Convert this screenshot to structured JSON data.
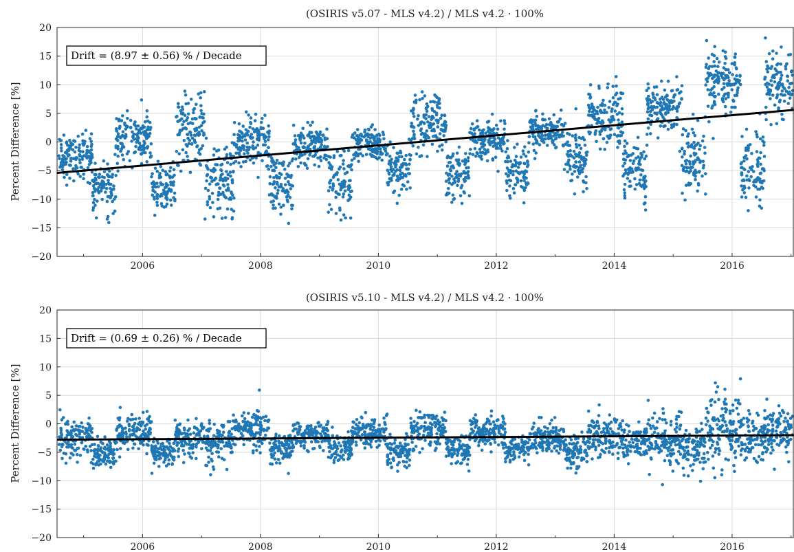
{
  "chart_data": [
    {
      "type": "scatter",
      "title": "(OSIRIS v5.07 - MLS v4.2) / MLS v4.2 · 100%",
      "ylabel": "Percent Difference [%]",
      "xlim": [
        2004.55,
        2017.05
      ],
      "ylim": [
        -20,
        20
      ],
      "x_ticks": [
        2006,
        2008,
        2010,
        2012,
        2014,
        2016
      ],
      "x_tick_labels": [
        "2006",
        "2008",
        "2010",
        "2012",
        "2014",
        "2016"
      ],
      "y_ticks": [
        -20,
        -15,
        -10,
        -5,
        0,
        5,
        10,
        15,
        20
      ],
      "y_tick_labels": [
        "−20",
        "−15",
        "−10",
        "−5",
        "0",
        "5",
        "10",
        "15",
        "20"
      ],
      "grid": true,
      "annotation": "Drift = (8.97 ± 0.56) % / Decade",
      "point_color": "#1f77b4",
      "trend": {
        "x": [
          2004.55,
          2017.05
        ],
        "y": [
          -5.4,
          5.6
        ],
        "color": "#000000"
      },
      "regimes": [
        {
          "start": 2004.58,
          "end": 2005.15,
          "center": -2.5,
          "spread": 3.0
        },
        {
          "start": 2005.15,
          "end": 2005.55,
          "center": -8.0,
          "spread": 3.0
        },
        {
          "start": 2005.55,
          "end": 2006.15,
          "center": 0.5,
          "spread": 3.5
        },
        {
          "start": 2006.15,
          "end": 2006.55,
          "center": -8.0,
          "spread": 3.0
        },
        {
          "start": 2006.55,
          "end": 2007.05,
          "center": 2.0,
          "spread": 4.5
        },
        {
          "start": 2007.05,
          "end": 2007.55,
          "center": -6.5,
          "spread": 4.5
        },
        {
          "start": 2007.55,
          "end": 2008.15,
          "center": 0.0,
          "spread": 3.5
        },
        {
          "start": 2008.15,
          "end": 2008.55,
          "center": -7.0,
          "spread": 4.0
        },
        {
          "start": 2008.55,
          "end": 2009.15,
          "center": -0.5,
          "spread": 2.5
        },
        {
          "start": 2009.15,
          "end": 2009.55,
          "center": -7.0,
          "spread": 4.0
        },
        {
          "start": 2009.55,
          "end": 2010.15,
          "center": -0.5,
          "spread": 2.0
        },
        {
          "start": 2010.15,
          "end": 2010.55,
          "center": -5.0,
          "spread": 3.0
        },
        {
          "start": 2010.55,
          "end": 2011.15,
          "center": 3.0,
          "spread": 3.5
        },
        {
          "start": 2011.15,
          "end": 2011.55,
          "center": -6.0,
          "spread": 3.0
        },
        {
          "start": 2011.55,
          "end": 2012.15,
          "center": 0.5,
          "spread": 2.5
        },
        {
          "start": 2012.15,
          "end": 2012.55,
          "center": -5.0,
          "spread": 3.0
        },
        {
          "start": 2012.55,
          "end": 2013.15,
          "center": 2.0,
          "spread": 2.5
        },
        {
          "start": 2013.15,
          "end": 2013.55,
          "center": -3.0,
          "spread": 4.0
        },
        {
          "start": 2013.55,
          "end": 2014.15,
          "center": 4.0,
          "spread": 3.5
        },
        {
          "start": 2014.15,
          "end": 2014.55,
          "center": -5.0,
          "spread": 3.5
        },
        {
          "start": 2014.55,
          "end": 2015.15,
          "center": 6.0,
          "spread": 3.5
        },
        {
          "start": 2015.15,
          "end": 2015.55,
          "center": -3.0,
          "spread": 4.0
        },
        {
          "start": 2015.55,
          "end": 2016.15,
          "center": 11.0,
          "spread": 4.0
        },
        {
          "start": 2016.15,
          "end": 2016.55,
          "center": -5.0,
          "spread": 5.0
        },
        {
          "start": 2016.55,
          "end": 2017.03,
          "center": 10.0,
          "spread": 4.5
        }
      ]
    },
    {
      "type": "scatter",
      "title": "(OSIRIS v5.10 - MLS v4.2) / MLS v4.2 · 100%",
      "ylabel": "Percent Difference [%]",
      "xlim": [
        2004.55,
        2017.05
      ],
      "ylim": [
        -20,
        20
      ],
      "x_ticks": [
        2006,
        2008,
        2010,
        2012,
        2014,
        2016
      ],
      "x_tick_labels": [
        "2006",
        "2008",
        "2010",
        "2012",
        "2014",
        "2016"
      ],
      "y_ticks": [
        -20,
        -15,
        -10,
        -5,
        0,
        5,
        10,
        15,
        20
      ],
      "y_tick_labels": [
        "−20",
        "−15",
        "−10",
        "−5",
        "0",
        "5",
        "10",
        "15",
        "20"
      ],
      "grid": true,
      "annotation": "Drift = (0.69 ± 0.26) % / Decade",
      "point_color": "#1f77b4",
      "trend": {
        "x": [
          2004.55,
          2017.05
        ],
        "y": [
          -2.8,
          -2.0
        ],
        "color": "#000000"
      },
      "regimes": [
        {
          "start": 2004.58,
          "end": 2005.15,
          "center": -2.5,
          "spread": 2.5
        },
        {
          "start": 2005.15,
          "end": 2005.55,
          "center": -5.0,
          "spread": 1.8
        },
        {
          "start": 2005.55,
          "end": 2006.15,
          "center": -1.5,
          "spread": 2.5
        },
        {
          "start": 2006.15,
          "end": 2006.55,
          "center": -5.0,
          "spread": 1.8
        },
        {
          "start": 2006.55,
          "end": 2007.05,
          "center": -2.5,
          "spread": 2.2
        },
        {
          "start": 2007.05,
          "end": 2007.55,
          "center": -3.0,
          "spread": 2.5
        },
        {
          "start": 2007.55,
          "end": 2008.15,
          "center": -1.0,
          "spread": 2.5
        },
        {
          "start": 2008.15,
          "end": 2008.55,
          "center": -4.5,
          "spread": 2.2
        },
        {
          "start": 2008.55,
          "end": 2009.15,
          "center": -2.0,
          "spread": 1.8
        },
        {
          "start": 2009.15,
          "end": 2009.55,
          "center": -4.0,
          "spread": 1.8
        },
        {
          "start": 2009.55,
          "end": 2010.15,
          "center": -1.5,
          "spread": 1.8
        },
        {
          "start": 2010.15,
          "end": 2010.55,
          "center": -5.0,
          "spread": 1.8
        },
        {
          "start": 2010.55,
          "end": 2011.15,
          "center": -1.0,
          "spread": 2.2
        },
        {
          "start": 2011.15,
          "end": 2011.55,
          "center": -4.5,
          "spread": 1.8
        },
        {
          "start": 2011.55,
          "end": 2012.15,
          "center": -1.5,
          "spread": 2.0
        },
        {
          "start": 2012.15,
          "end": 2012.55,
          "center": -4.5,
          "spread": 1.8
        },
        {
          "start": 2012.55,
          "end": 2013.15,
          "center": -2.5,
          "spread": 2.0
        },
        {
          "start": 2013.15,
          "end": 2013.55,
          "center": -5.0,
          "spread": 2.0
        },
        {
          "start": 2013.55,
          "end": 2014.15,
          "center": -2.0,
          "spread": 2.5
        },
        {
          "start": 2014.15,
          "end": 2014.55,
          "center": -3.0,
          "spread": 2.5
        },
        {
          "start": 2014.55,
          "end": 2015.15,
          "center": -3.0,
          "spread": 3.5
        },
        {
          "start": 2015.15,
          "end": 2015.55,
          "center": -4.0,
          "spread": 3.0
        },
        {
          "start": 2015.55,
          "end": 2016.15,
          "center": -1.0,
          "spread": 4.5
        },
        {
          "start": 2016.15,
          "end": 2016.55,
          "center": -3.0,
          "spread": 3.5
        },
        {
          "start": 2016.55,
          "end": 2017.03,
          "center": -1.0,
          "spread": 3.0
        }
      ]
    }
  ]
}
